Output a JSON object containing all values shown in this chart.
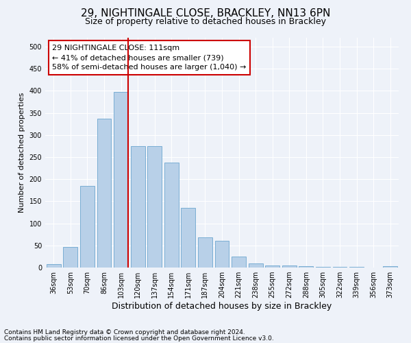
{
  "title1": "29, NIGHTINGALE CLOSE, BRACKLEY, NN13 6PN",
  "title2": "Size of property relative to detached houses in Brackley",
  "xlabel": "Distribution of detached houses by size in Brackley",
  "ylabel": "Number of detached properties",
  "categories": [
    "36sqm",
    "53sqm",
    "70sqm",
    "86sqm",
    "103sqm",
    "120sqm",
    "137sqm",
    "154sqm",
    "171sqm",
    "187sqm",
    "204sqm",
    "221sqm",
    "238sqm",
    "255sqm",
    "272sqm",
    "288sqm",
    "305sqm",
    "322sqm",
    "339sqm",
    "356sqm",
    "373sqm"
  ],
  "values": [
    8,
    46,
    184,
    337,
    398,
    275,
    275,
    238,
    135,
    68,
    61,
    25,
    10,
    5,
    4,
    3,
    2,
    1,
    1,
    0,
    3
  ],
  "bar_color": "#b8d0e8",
  "bar_edge_color": "#7aaed4",
  "vline_color": "#cc0000",
  "annotation_text": "29 NIGHTINGALE CLOSE: 111sqm\n← 41% of detached houses are smaller (739)\n58% of semi-detached houses are larger (1,040) →",
  "annotation_box_color": "#ffffff",
  "annotation_box_edge": "#cc0000",
  "ylim": [
    0,
    520
  ],
  "yticks": [
    0,
    50,
    100,
    150,
    200,
    250,
    300,
    350,
    400,
    450,
    500
  ],
  "footnote1": "Contains HM Land Registry data © Crown copyright and database right 2024.",
  "footnote2": "Contains public sector information licensed under the Open Government Licence v3.0.",
  "background_color": "#eef2f9",
  "grid_color": "#ffffff",
  "title1_fontsize": 11,
  "title2_fontsize": 9,
  "xlabel_fontsize": 9,
  "ylabel_fontsize": 8,
  "tick_fontsize": 7,
  "annot_fontsize": 8,
  "footnote_fontsize": 6.5
}
